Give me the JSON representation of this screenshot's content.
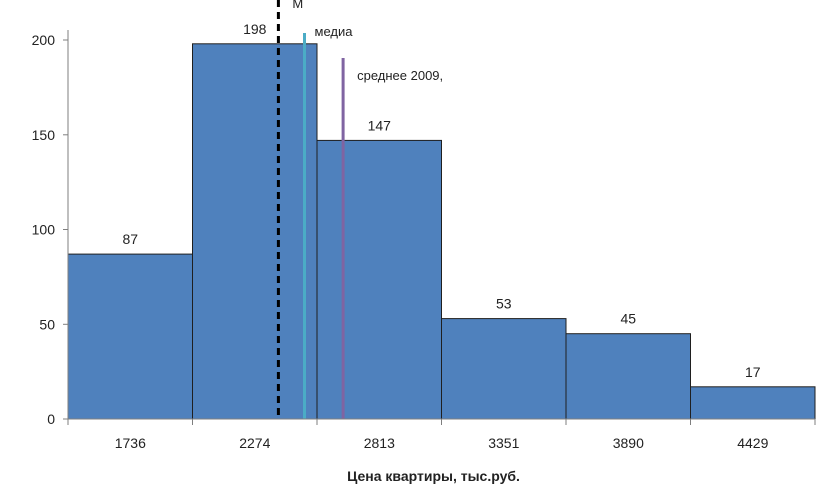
{
  "chart_data": {
    "type": "bar",
    "title": "",
    "xlabel": "Цена квартиры, тыс.руб.",
    "ylabel": "",
    "categories": [
      "1736",
      "2274",
      "2813",
      "3351",
      "3890",
      "4429"
    ],
    "values": [
      87,
      198,
      147,
      53,
      45,
      17
    ],
    "data_labels": [
      "87",
      "198",
      "147",
      "53",
      "45",
      "17"
    ],
    "ylim": [
      0,
      200
    ],
    "yticks": [
      0,
      50,
      100,
      150,
      200
    ],
    "grid": false,
    "legend": "none",
    "bar_color": "#4f81bd",
    "bar_edge_color": "#1f1f1f",
    "reference_lines": [
      {
        "position_category_index": 1.69,
        "style": "dashed",
        "color": "#000000",
        "label": "М"
      },
      {
        "position_category_index": 1.9,
        "style": "solid",
        "color": "#4bacc6",
        "label": "медиа"
      },
      {
        "position_category_index": 2.21,
        "style": "solid",
        "color": "#8064a2",
        "label": "среднее 2009,"
      }
    ]
  }
}
